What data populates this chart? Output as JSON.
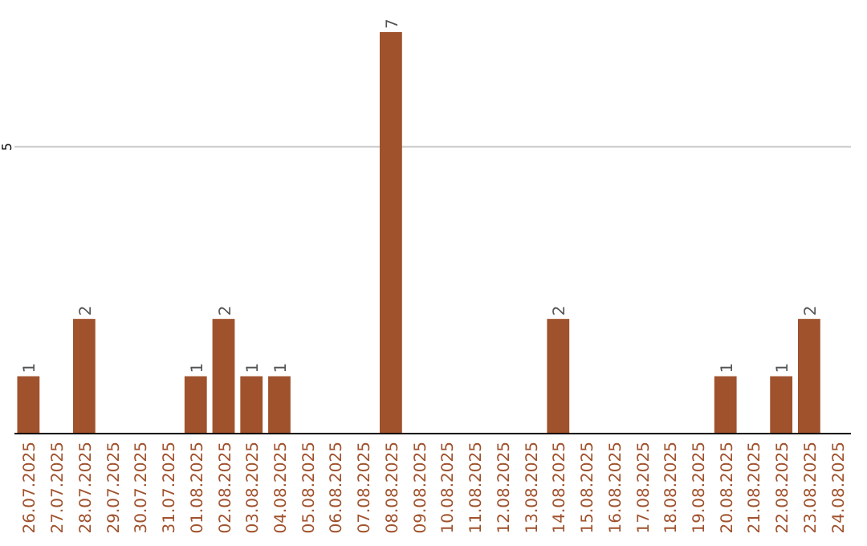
{
  "chart_data": {
    "type": "bar",
    "categories": [
      "26.07.2025",
      "27.07.2025",
      "28.07.2025",
      "29.07.2025",
      "30.07.2025",
      "31.07.2025",
      "01.08.2025",
      "02.08.2025",
      "03.08.2025",
      "04.08.2025",
      "05.08.2025",
      "06.08.2025",
      "07.08.2025",
      "08.08.2025",
      "09.08.2025",
      "10.08.2025",
      "11.08.2025",
      "12.08.2025",
      "13.08.2025",
      "14.08.2025",
      "15.08.2025",
      "16.08.2025",
      "17.08.2025",
      "18.08.2025",
      "19.08.2025",
      "20.08.2025",
      "21.08.2025",
      "22.08.2025",
      "23.08.2025",
      "24.08.2025"
    ],
    "values": [
      1,
      0,
      2,
      0,
      0,
      0,
      1,
      2,
      1,
      1,
      0,
      0,
      0,
      7,
      0,
      0,
      0,
      0,
      0,
      2,
      0,
      0,
      0,
      0,
      0,
      1,
      0,
      1,
      2,
      0
    ],
    "value_labels": [
      "1",
      null,
      "2",
      null,
      null,
      null,
      "1",
      "2",
      "1",
      "1",
      null,
      null,
      null,
      "7",
      null,
      null,
      null,
      null,
      null,
      "2",
      null,
      null,
      null,
      null,
      null,
      "1",
      null,
      "1",
      "2",
      null
    ],
    "color": "#a0522d",
    "ylim": [
      0,
      7
    ],
    "yticks": [
      5
    ],
    "grid": "y"
  }
}
